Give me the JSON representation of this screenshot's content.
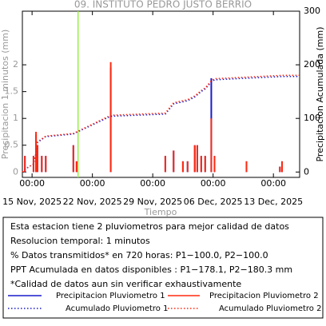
{
  "chart_data": {
    "type": "line",
    "title": "09. INSTITUTO PEDRO JUSTO BERRIO",
    "y_label": "Precipitacion 1 minutos (mm)",
    "y2_label": "Precipitacion Acumulada (mm)",
    "x_label": "Tiempo",
    "xlim": [
      "2025-11-13 21:00",
      "2025-12-16 01:00"
    ],
    "xticks": [
      {
        "value": "2025-11-15 00:00",
        "label": "00:00",
        "sublabel": "15 Nov, 2025"
      },
      {
        "value": "2025-11-22 00:00",
        "label": "00:00",
        "sublabel": "22 Nov, 2025"
      },
      {
        "value": "2025-11-29 00:00",
        "label": "00:00",
        "sublabel": "29 Nov, 2025"
      },
      {
        "value": "2025-12-06 00:00",
        "label": "00:00",
        "sublabel": "06 Dec, 2025"
      },
      {
        "value": "2025-12-13 00:00",
        "label": "00:00",
        "sublabel": "13 Dec, 2025"
      }
    ],
    "ylim": [
      -0.1,
      3
    ],
    "yticks": [
      0,
      0.5,
      1,
      1.5,
      2
    ],
    "y2lim": [
      -10,
      300
    ],
    "y2ticks": [
      0,
      100,
      200,
      300
    ],
    "markers": [
      {
        "x": "2025-11-20 08:00",
        "color": "#99ee44"
      }
    ],
    "series": [
      {
        "name": "Precipitacion Pluviometro 1",
        "color": "#1a1acc",
        "style": "spike",
        "x": [
          "2025-11-14 04:00",
          "2025-11-15 04:00",
          "2025-11-15 11:00",
          "2025-11-15 15:00",
          "2025-11-16 03:00",
          "2025-11-16 14:00",
          "2025-11-19 19:00",
          "2025-11-20 04:00",
          "2025-11-24 03:00",
          "2025-11-30 11:00",
          "2025-12-01 10:00",
          "2025-12-02 12:00",
          "2025-12-03 01:00",
          "2025-12-03 21:00",
          "2025-12-04 04:00",
          "2025-12-04 15:00",
          "2025-12-05 02:00",
          "2025-12-05 19:00",
          "2025-12-06 04:00",
          "2025-12-09 21:00",
          "2025-12-13 18:00",
          "2025-12-14 00:00"
        ],
        "values": [
          0.3,
          0.3,
          0.7,
          0.5,
          0.3,
          0.3,
          0.5,
          0.2,
          1.95,
          0.3,
          0.4,
          0.2,
          0.2,
          0.5,
          0.5,
          0.3,
          0.3,
          1.75,
          0.3,
          0.2,
          0.1,
          0.2
        ]
      },
      {
        "name": "Precipitacion Pluviometro 2",
        "color": "#ff2a10",
        "style": "spike",
        "x": [
          "2025-11-14 04:00",
          "2025-11-15 04:00",
          "2025-11-15 11:00",
          "2025-11-15 15:00",
          "2025-11-16 03:00",
          "2025-11-16 14:00",
          "2025-11-19 19:00",
          "2025-11-20 04:00",
          "2025-11-24 03:00",
          "2025-11-30 11:00",
          "2025-12-01 10:00",
          "2025-12-02 12:00",
          "2025-12-03 01:00",
          "2025-12-03 21:00",
          "2025-12-04 04:00",
          "2025-12-04 15:00",
          "2025-12-05 02:00",
          "2025-12-05 19:00",
          "2025-12-06 04:00",
          "2025-12-09 21:00",
          "2025-12-13 18:00",
          "2025-12-14 00:00"
        ],
        "values": [
          0.3,
          0.3,
          0.75,
          0.5,
          0.3,
          0.3,
          0.5,
          0.2,
          2.05,
          0.3,
          0.4,
          0.2,
          0.2,
          0.5,
          0.5,
          0.3,
          0.3,
          1.0,
          0.3,
          0.2,
          0.1,
          0.2
        ]
      },
      {
        "name": "Acumulado Pluviometro 1",
        "color": "#1a1acc",
        "style": "dotted",
        "axis": "y2",
        "x": [
          "2025-11-13 21:00",
          "2025-11-14 04:00",
          "2025-11-15 04:00",
          "2025-11-15 11:00",
          "2025-11-15 15:00",
          "2025-11-16 14:00",
          "2025-11-19 19:00",
          "2025-11-20 04:00",
          "2025-11-24 03:00",
          "2025-11-30 11:00",
          "2025-12-01 10:00",
          "2025-12-03 01:00",
          "2025-12-03 21:00",
          "2025-12-04 15:00",
          "2025-12-05 02:00",
          "2025-12-05 19:00",
          "2025-12-06 04:00",
          "2025-12-09 21:00",
          "2025-12-14 00:00",
          "2025-12-16 01:00"
        ],
        "values": [
          0,
          5,
          15,
          35,
          55,
          66,
          71,
          74,
          104,
          108,
          127,
          133,
          140,
          150,
          155,
          168,
          172,
          175,
          178.1,
          178.1
        ]
      },
      {
        "name": "Acumulado Pluviometro 2",
        "color": "#ff2a10",
        "style": "dotted",
        "axis": "y2",
        "x": [
          "2025-11-13 21:00",
          "2025-11-14 04:00",
          "2025-11-15 04:00",
          "2025-11-15 11:00",
          "2025-11-15 15:00",
          "2025-11-16 14:00",
          "2025-11-19 19:00",
          "2025-11-20 04:00",
          "2025-11-24 03:00",
          "2025-11-30 11:00",
          "2025-12-01 10:00",
          "2025-12-03 01:00",
          "2025-12-03 21:00",
          "2025-12-04 15:00",
          "2025-12-05 02:00",
          "2025-12-05 19:00",
          "2025-12-06 04:00",
          "2025-12-09 21:00",
          "2025-12-14 00:00",
          "2025-12-16 01:00"
        ],
        "values": [
          0,
          5,
          15,
          36,
          56,
          67,
          72,
          75,
          106,
          110,
          129,
          135,
          142,
          152,
          157,
          170,
          174,
          177,
          180.3,
          180.3
        ]
      }
    ],
    "notes": [
      "Esta estacion tiene 2 pluviometros para mejor calidad de datos",
      "Resolucion temporal: 1 minutos",
      "% Datos transmitidos* en 720 horas: P1−100.0, P2−100.0",
      "PPT Acumulada en datos disponibles : P1−178.1, P2−180.3 mm",
      "*Calidad de datos aun sin verificar exhaustivamente"
    ]
  }
}
